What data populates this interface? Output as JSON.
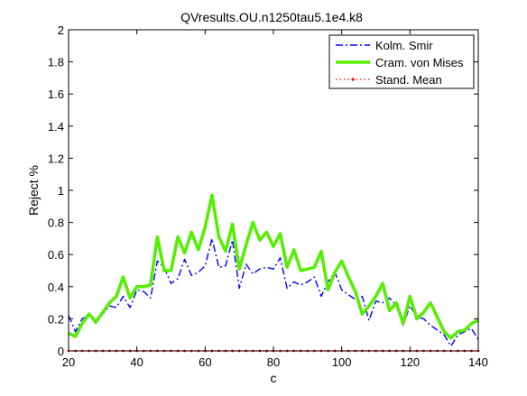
{
  "chart_data": {
    "type": "line",
    "title": "QVresults.OU.n1250tau5.1e4.k8",
    "xlabel": "c",
    "ylabel": "Reject %",
    "xlim": [
      20,
      140
    ],
    "ylim": [
      0,
      2
    ],
    "x_ticks": [
      20,
      40,
      60,
      80,
      100,
      120,
      140
    ],
    "y_ticks": [
      0,
      0.2,
      0.4,
      0.6,
      0.8,
      1,
      1.2,
      1.4,
      1.6,
      1.8,
      2
    ],
    "y_tick_labels": [
      "0",
      "0.2",
      "0.4",
      "0.6",
      "0.8",
      "1",
      "1.2",
      "1.4",
      "1.6",
      "1.8",
      "2"
    ],
    "grid": false,
    "legend_position": "top-right",
    "x": [
      20,
      22,
      24,
      26,
      28,
      30,
      32,
      34,
      36,
      38,
      40,
      42,
      44,
      46,
      48,
      50,
      52,
      54,
      56,
      58,
      60,
      62,
      64,
      66,
      68,
      70,
      72,
      74,
      76,
      78,
      80,
      82,
      84,
      86,
      88,
      90,
      92,
      94,
      96,
      98,
      100,
      102,
      104,
      106,
      108,
      110,
      112,
      114,
      116,
      118,
      120,
      122,
      124,
      126,
      128,
      130,
      132,
      134,
      136,
      138,
      140
    ],
    "series": [
      {
        "name": "Kolm. Smir",
        "color": "#0000ff",
        "style": "dashdot",
        "values": [
          0.22,
          0.12,
          0.2,
          0.22,
          0.17,
          0.23,
          0.28,
          0.27,
          0.34,
          0.27,
          0.38,
          0.37,
          0.33,
          0.56,
          0.52,
          0.42,
          0.45,
          0.57,
          0.47,
          0.49,
          0.53,
          0.7,
          0.52,
          0.53,
          0.69,
          0.39,
          0.54,
          0.48,
          0.51,
          0.52,
          0.51,
          0.58,
          0.39,
          0.43,
          0.41,
          0.43,
          0.46,
          0.34,
          0.43,
          0.49,
          0.38,
          0.35,
          0.32,
          0.34,
          0.19,
          0.31,
          0.3,
          0.33,
          0.28,
          0.16,
          0.28,
          0.21,
          0.2,
          0.16,
          0.13,
          0.1,
          0.03,
          0.1,
          0.12,
          0.14,
          0.07
        ]
      },
      {
        "name": "Cram. von Mises",
        "color": "#55ee00",
        "style": "solid",
        "values": [
          0.11,
          0.09,
          0.17,
          0.23,
          0.18,
          0.24,
          0.3,
          0.34,
          0.46,
          0.33,
          0.4,
          0.4,
          0.41,
          0.71,
          0.5,
          0.5,
          0.71,
          0.61,
          0.74,
          0.63,
          0.77,
          0.97,
          0.71,
          0.62,
          0.79,
          0.51,
          0.66,
          0.8,
          0.69,
          0.74,
          0.65,
          0.73,
          0.52,
          0.63,
          0.5,
          0.51,
          0.52,
          0.62,
          0.38,
          0.49,
          0.56,
          0.46,
          0.37,
          0.23,
          0.28,
          0.34,
          0.42,
          0.25,
          0.3,
          0.17,
          0.34,
          0.2,
          0.24,
          0.3,
          0.21,
          0.12,
          0.08,
          0.12,
          0.13,
          0.17,
          0.19
        ]
      },
      {
        "name": "Stand. Mean",
        "color": "#ff0000",
        "style": "dotted-marker",
        "values": [
          0,
          0,
          0,
          0,
          0,
          0,
          0,
          0,
          0,
          0,
          0,
          0,
          0,
          0,
          0,
          0,
          0,
          0,
          0,
          0,
          0,
          0,
          0,
          0,
          0,
          0,
          0,
          0,
          0,
          0,
          0,
          0,
          0,
          0,
          0,
          0,
          0,
          0,
          0,
          0,
          0,
          0,
          0,
          0,
          0,
          0,
          0,
          0,
          0,
          0,
          0,
          0,
          0,
          0,
          0,
          0,
          0,
          0,
          0,
          0,
          0
        ]
      }
    ]
  }
}
